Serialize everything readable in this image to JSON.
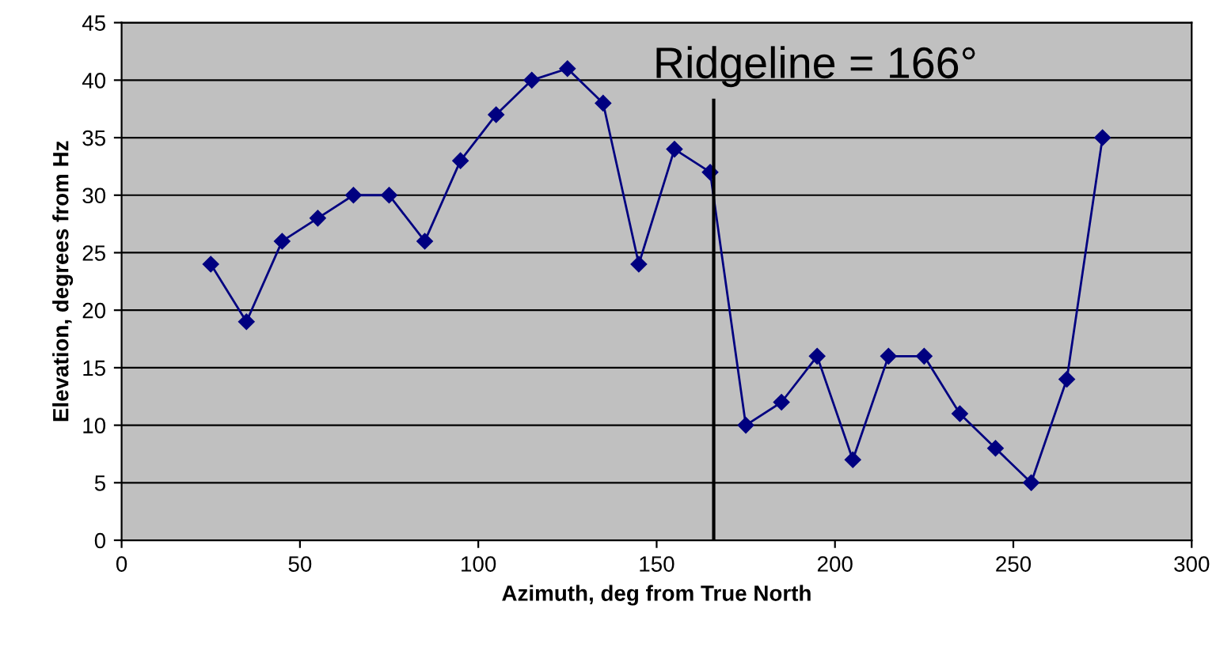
{
  "chart_data": {
    "type": "line",
    "xlabel": "Azimuth, deg from True North",
    "ylabel": "Elevation, degrees from Hz",
    "x": [
      25,
      35,
      45,
      55,
      65,
      75,
      85,
      95,
      105,
      115,
      125,
      135,
      145,
      155,
      165,
      175,
      185,
      195,
      205,
      215,
      225,
      235,
      245,
      255,
      265,
      275
    ],
    "series": [
      {
        "color": "#000080",
        "values": [
          24,
          19,
          26,
          28,
          30,
          30,
          26,
          33,
          37,
          40,
          41,
          38,
          24,
          34,
          32,
          10,
          12,
          16,
          7,
          16,
          16,
          11,
          8,
          5,
          14,
          35
        ]
      }
    ],
    "xlim": [
      0,
      300
    ],
    "xticks": [
      0,
      50,
      100,
      150,
      200,
      250,
      300
    ],
    "ylim": [
      0,
      45
    ],
    "yticks": [
      0,
      5,
      10,
      15,
      20,
      25,
      30,
      35,
      40,
      45
    ],
    "grid": "y",
    "marker": "diamond",
    "line_style": "solid",
    "legend": false,
    "ref_lines": [
      {
        "axis": "x",
        "value": 166,
        "label": "Ridgeline = 166°",
        "color": "#000000"
      }
    ]
  }
}
